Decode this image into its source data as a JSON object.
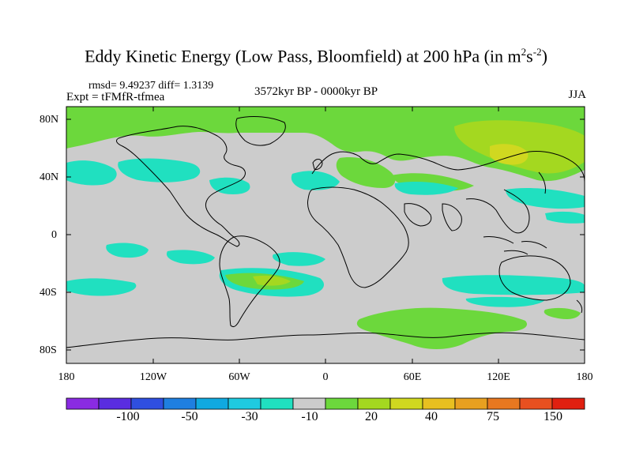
{
  "header": {
    "title_main": "Eddy Kinetic Energy (Low Pass, Bloomfield) at 200 hPa (in m",
    "title_sup1": "2",
    "title_mid": "s",
    "title_sup2": "-2",
    "title_end": ")",
    "rmsd": "rmsd= 9.49237 diff= 1.3139",
    "expt": "Expt = tFMfR-tfmea",
    "period": "3572kyr BP - 0000kyr BP",
    "season": "JJA"
  },
  "axes": {
    "lat_labels": [
      "80N",
      "40N",
      "0",
      "40S",
      "80S"
    ],
    "lon_labels": [
      "180",
      "120W",
      "60W",
      "0",
      "60E",
      "120E",
      "180"
    ]
  },
  "colorbar": {
    "colors": [
      "#8a2be2",
      "#5a2de0",
      "#2f4fe0",
      "#1f7fe0",
      "#10a9e0",
      "#1fcae0",
      "#20e0c0",
      "#cccccc",
      "#6cd83c",
      "#a4d820",
      "#d0d820",
      "#e8c020",
      "#e8a020",
      "#e87820",
      "#e85020",
      "#e02010"
    ],
    "labels": [
      "-100",
      "-50",
      "-30",
      "-10",
      "20",
      "40",
      "75",
      "150"
    ]
  },
  "map": {
    "colors": {
      "ocean_land_neutral": "#cccccc",
      "positive_light": "#6cd83c",
      "positive_mid": "#a4d820",
      "positive_high": "#d0d820",
      "negative_light": "#20e0c0",
      "coastline": "#000000"
    }
  }
}
